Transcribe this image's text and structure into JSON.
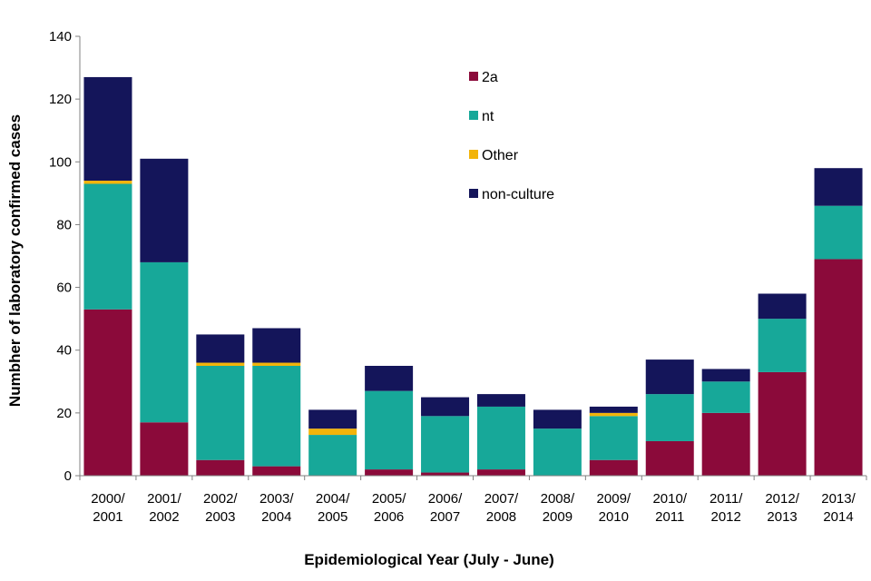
{
  "chart_data": {
    "type": "bar",
    "stacked": true,
    "title": "",
    "xlabel": "Epidemiological Year (July - June)",
    "ylabel": "Numbher of laboratory confirmed  cases",
    "ylim": [
      0,
      140
    ],
    "yticks": [
      0,
      20,
      40,
      60,
      80,
      100,
      120,
      140
    ],
    "grid": false,
    "legend_position": "top-center",
    "categories": [
      [
        "2000/",
        "2001"
      ],
      [
        "2001/",
        "2002"
      ],
      [
        "2002/",
        "2003"
      ],
      [
        "2003/",
        "2004"
      ],
      [
        "2004/",
        "2005"
      ],
      [
        "2005/",
        "2006"
      ],
      [
        "2006/",
        "2007"
      ],
      [
        "2007/",
        "2008"
      ],
      [
        "2008/",
        "2009"
      ],
      [
        "2009/",
        "2010"
      ],
      [
        "2010/",
        "2011"
      ],
      [
        "2011/",
        "2012"
      ],
      [
        "2012/",
        "2013"
      ],
      [
        "2013/",
        "2014"
      ]
    ],
    "series": [
      {
        "name": "2a",
        "color": "#8b0a3a",
        "values": [
          53,
          17,
          5,
          3,
          0,
          2,
          1,
          2,
          0,
          5,
          11,
          20,
          33,
          69
        ]
      },
      {
        "name": "nt",
        "color": "#17a899",
        "values": [
          40,
          51,
          30,
          32,
          13,
          25,
          18,
          20,
          15,
          14,
          15,
          10,
          17,
          17
        ]
      },
      {
        "name": "Other",
        "color": "#f2b40a",
        "values": [
          1,
          0,
          1,
          1,
          2,
          0,
          0,
          0,
          0,
          1,
          0,
          0,
          0,
          0
        ]
      },
      {
        "name": "non-culture",
        "color": "#14155a",
        "values": [
          33,
          33,
          9,
          11,
          6,
          8,
          6,
          4,
          6,
          2,
          11,
          4,
          8,
          12
        ]
      }
    ]
  }
}
